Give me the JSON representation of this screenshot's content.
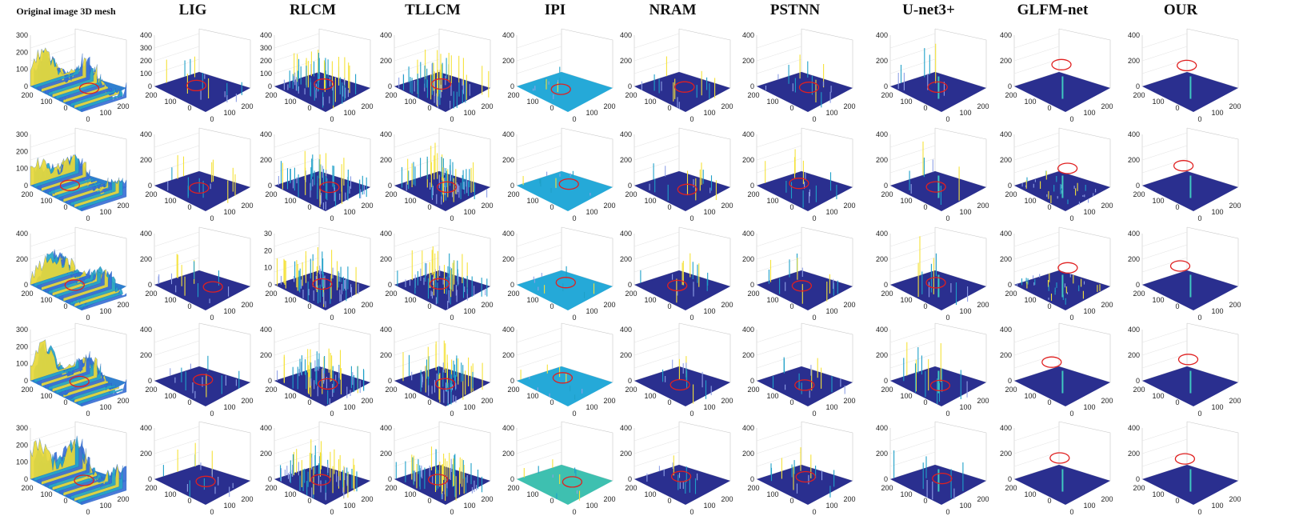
{
  "figure": {
    "columns": [
      {
        "id": "original",
        "title": "Original image 3D mesh",
        "surface": "terrain",
        "zmax": [
          300,
          300,
          400,
          300,
          300
        ],
        "zticks": [
          [
            0,
            100,
            200,
            300
          ],
          [
            0,
            100,
            200,
            300
          ],
          [
            0,
            200,
            400
          ],
          [
            0,
            100,
            200,
            300
          ],
          [
            0,
            100,
            200,
            300
          ]
        ]
      },
      {
        "id": "lig",
        "title": "LIG",
        "surface": "sparse",
        "zmax": [
          400,
          400,
          400,
          400,
          400
        ],
        "zticks": [
          [
            0,
            100,
            200,
            300,
            400
          ],
          [
            0,
            200,
            400
          ],
          [
            0,
            200,
            400
          ],
          [
            0,
            200,
            400
          ],
          [
            0,
            200,
            400
          ]
        ]
      },
      {
        "id": "rlcm",
        "title": "RLCM",
        "surface": "noisy",
        "zmax": [
          400,
          400,
          30,
          400,
          400
        ],
        "zticks": [
          [
            0,
            100,
            200,
            300,
            400
          ],
          [
            0,
            200,
            400
          ],
          [
            0,
            10,
            20,
            30
          ],
          [
            0,
            200,
            400
          ],
          [
            0,
            200,
            400
          ]
        ]
      },
      {
        "id": "tllcm",
        "title": "TLLCM",
        "surface": "noisy",
        "zmax": [
          400,
          400,
          400,
          400,
          400
        ],
        "zticks": [
          [
            0,
            200,
            400
          ],
          [
            0,
            200,
            400
          ],
          [
            0,
            200,
            400
          ],
          [
            0,
            200,
            400
          ],
          [
            0,
            200,
            400
          ]
        ]
      },
      {
        "id": "ipi",
        "title": "IPI",
        "surface": "flat",
        "zmax": [
          400,
          400,
          400,
          400,
          400
        ],
        "zticks": [
          [
            0,
            200,
            400
          ],
          [
            0,
            200,
            400
          ],
          [
            0,
            200,
            400
          ],
          [
            0,
            200,
            400
          ],
          [
            0,
            200,
            400
          ]
        ]
      },
      {
        "id": "nram",
        "title": "NRAM",
        "surface": "sparse",
        "zmax": [
          400,
          400,
          400,
          400,
          400
        ],
        "zticks": [
          [
            0,
            200,
            400
          ],
          [
            0,
            200,
            400
          ],
          [
            0,
            200,
            400
          ],
          [
            0,
            200,
            400
          ],
          [
            0,
            200,
            400
          ]
        ]
      },
      {
        "id": "pstnn",
        "title": "PSTNN",
        "surface": "sparse",
        "zmax": [
          400,
          400,
          400,
          400,
          400
        ],
        "zticks": [
          [
            0,
            200,
            400
          ],
          [
            0,
            200,
            400
          ],
          [
            0,
            200,
            400
          ],
          [
            0,
            200,
            400
          ],
          [
            0,
            200,
            400
          ]
        ]
      },
      {
        "id": "unet3",
        "title": "U-net3+",
        "surface": "spikes",
        "zmax": [
          400,
          400,
          400,
          400,
          400
        ],
        "zticks": [
          [
            0,
            200,
            400
          ],
          [
            0,
            200,
            400
          ],
          [
            0,
            200,
            400
          ],
          [
            0,
            200,
            400
          ],
          [
            0,
            200,
            400
          ]
        ]
      },
      {
        "id": "glfm",
        "title": "GLFM-net",
        "surface": "single",
        "zmax": [
          400,
          400,
          400,
          400,
          400
        ],
        "zticks": [
          [
            0,
            200,
            400
          ],
          [
            0,
            200,
            400
          ],
          [
            0,
            200,
            400
          ],
          [
            0,
            200,
            400
          ],
          [
            0,
            200,
            400
          ]
        ]
      },
      {
        "id": "our",
        "title": "OUR",
        "surface": "single",
        "zmax": [
          400,
          400,
          400,
          400,
          400
        ],
        "zticks": [
          [
            0,
            200,
            400
          ],
          [
            0,
            200,
            400
          ],
          [
            0,
            200,
            400
          ],
          [
            0,
            200,
            400
          ],
          [
            0,
            200,
            400
          ]
        ]
      }
    ],
    "rows": 5,
    "axis_ticks": {
      "left": [
        "200",
        "100",
        "0"
      ],
      "right": [
        "0",
        "100",
        "200"
      ]
    },
    "colors": {
      "floor": "#2a2f8f",
      "low": "#3b4cc0",
      "mid": "#1fa0c8",
      "high": "#f5e23a",
      "marker": "#e02020",
      "axis": "#888888"
    }
  }
}
